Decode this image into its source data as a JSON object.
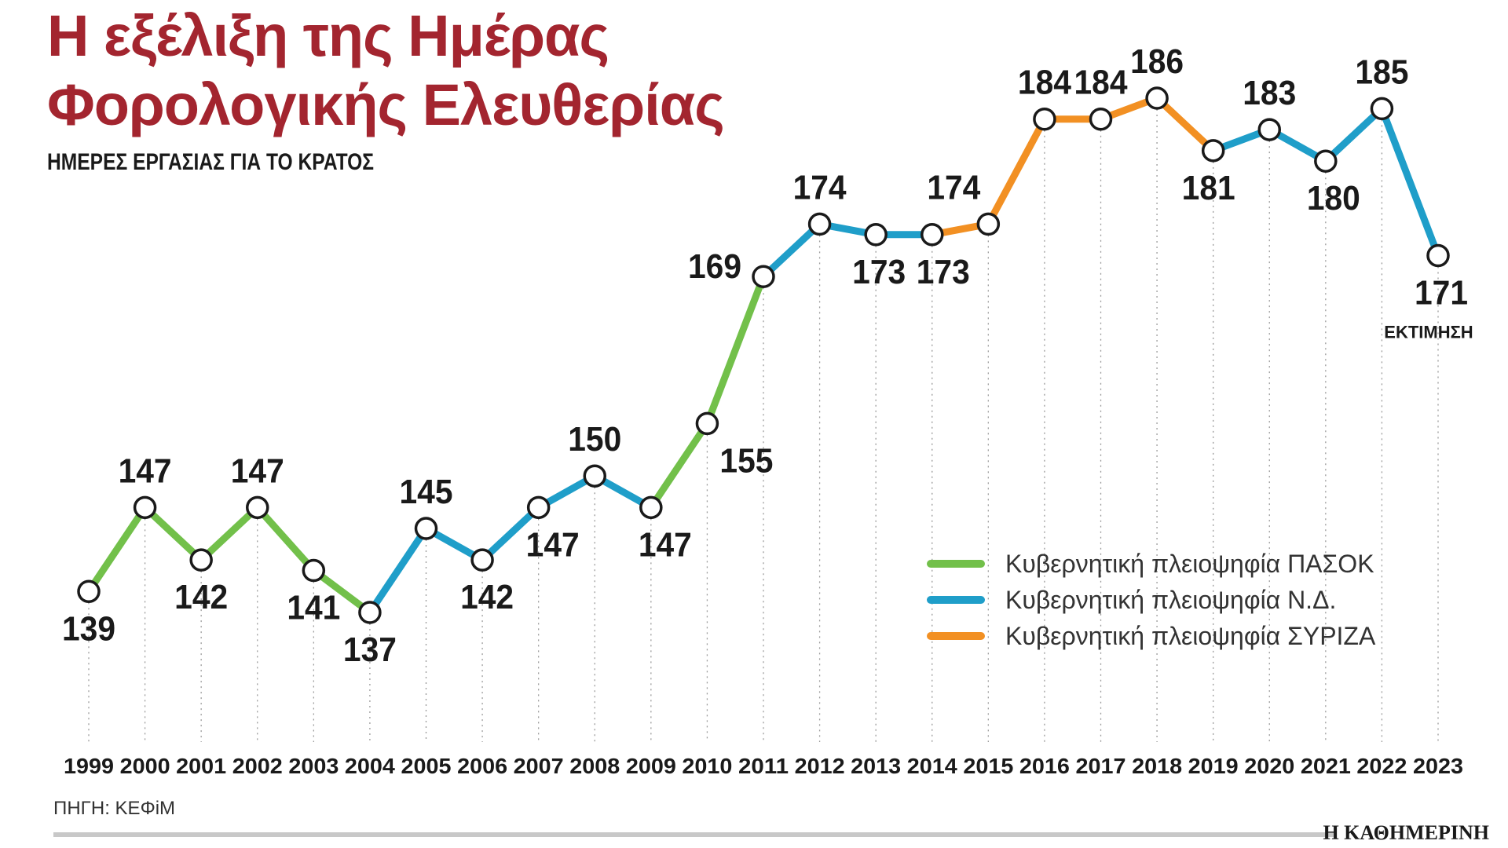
{
  "title": {
    "line1": "Η εξέλιξη της Ημέρας",
    "line2": "Φορολογικής Ελευθερίας"
  },
  "subtitle": "ΗΜΕΡΕΣ ΕΡΓΑΣΙΑΣ ΓΙΑ ΤΟ ΚΡΑΤΟΣ",
  "source": "ΠΗΓΗ: ΚΕΦiΜ",
  "brand": "Η ΚΑΘΗΜΕΡΙΝΗ",
  "estimate_note": "ΕΚΤΙΜΗΣΗ",
  "colors": {
    "title": "#a3252f",
    "pasok": "#72c04a",
    "nd": "#1f9ec9",
    "syriza": "#f29023"
  },
  "legend": [
    {
      "label": "Κυβερνητική πλειοψηφία ΠΑΣΟΚ",
      "color": "#72c04a"
    },
    {
      "label": "Κυβερνητική πλειοψηφία Ν.Δ.",
      "color": "#1f9ec9"
    },
    {
      "label": "Κυβερνητική πλειοψηφία ΣΥΡΙΖΑ",
      "color": "#f29023"
    }
  ],
  "chart_data": {
    "type": "line",
    "title": "Η εξέλιξη της Ημέρας Φορολογικής Ελευθερίας",
    "subtitle": "ΗΜΕΡΕΣ ΕΡΓΑΣΙΑΣ ΓΙΑ ΤΟ ΚΡΑΤΟΣ",
    "categories": [
      "1999",
      "2000",
      "2001",
      "2002",
      "2003",
      "2004",
      "2005",
      "2006",
      "2007",
      "2008",
      "2009",
      "2010",
      "2011",
      "2012",
      "2013",
      "2014",
      "2015",
      "2016",
      "2017",
      "2018",
      "2019",
      "2020",
      "2021",
      "2022",
      "2023"
    ],
    "values": [
      139,
      147,
      142,
      147,
      141,
      137,
      145,
      142,
      147,
      150,
      147,
      155,
      169,
      174,
      173,
      173,
      174,
      184,
      184,
      186,
      181,
      183,
      180,
      185,
      171
    ],
    "value_labels": [
      "139",
      "147",
      "142",
      "147",
      "141",
      "137",
      "145",
      "142",
      "147",
      "150",
      "147",
      "155",
      "169",
      "174",
      "173",
      "173",
      "174",
      "184",
      "184",
      "186",
      "181",
      "183",
      "180",
      "185",
      "171"
    ],
    "segment_government": [
      "pasok",
      "pasok",
      "pasok",
      "pasok",
      "pasok",
      "nd",
      "nd",
      "nd",
      "nd",
      "nd",
      "pasok",
      "pasok",
      "nd",
      "nd",
      "nd",
      "syriza",
      "syriza",
      "syriza",
      "syriza",
      "syriza",
      "nd",
      "nd",
      "nd",
      "nd"
    ],
    "ylim": [
      130,
      190
    ],
    "grid": "vertical dotted lines",
    "legend_position": "bottom-right",
    "estimate_year": "2023"
  }
}
